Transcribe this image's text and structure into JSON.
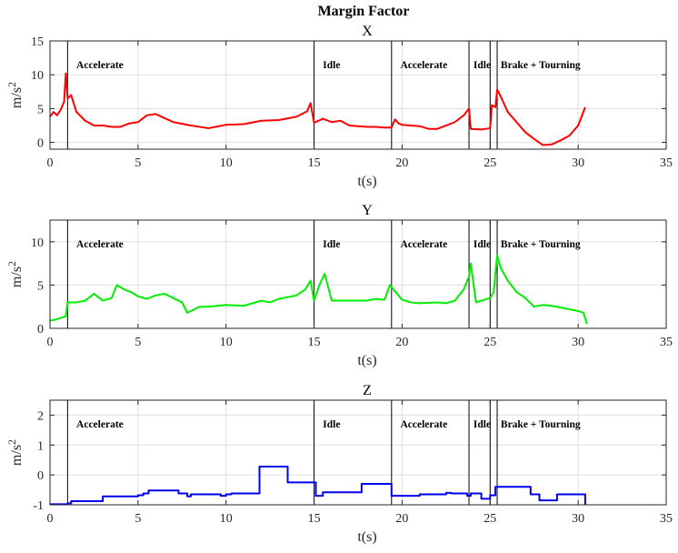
{
  "figure_title": "Margin Factor",
  "chart_data": [
    {
      "type": "line",
      "title": "X",
      "xlabel": "t(s)",
      "ylabel": "m/s^2",
      "xlim": [
        0,
        35
      ],
      "ylim": [
        -1,
        15
      ],
      "xticks": [
        0,
        5,
        10,
        15,
        20,
        25,
        30,
        35
      ],
      "yticks": [
        0,
        5,
        10,
        15
      ],
      "grid": true,
      "events": [
        1,
        15,
        19.4,
        23.8,
        25,
        25.4
      ],
      "annotations": [
        {
          "text": "Accelerate",
          "x": 1.5
        },
        {
          "text": "Idle",
          "x": 15.5
        },
        {
          "text": "Accelerate",
          "x": 19.9
        },
        {
          "text": "Idle",
          "x": 24.05
        },
        {
          "text": "Brake + Tourning",
          "x": 25.6
        }
      ],
      "series": [
        {
          "color": "#ff0000",
          "x": [
            0,
            0.2,
            0.4,
            0.6,
            0.8,
            0.9,
            1.0,
            1.2,
            1.5,
            2.0,
            2.5,
            3.0,
            3.5,
            4.0,
            4.5,
            5.0,
            5.5,
            6.0,
            6.5,
            7.0,
            8.0,
            9.0,
            10.0,
            11.0,
            12.0,
            13.0,
            14.0,
            14.6,
            14.8,
            15.0,
            15.5,
            16.0,
            16.5,
            17.0,
            17.5,
            18.0,
            18.5,
            19.0,
            19.4,
            19.6,
            19.8,
            20.0,
            20.5,
            21.0,
            21.5,
            22.0,
            22.5,
            23.0,
            23.5,
            23.8,
            23.9,
            24.5,
            25.0,
            25.1,
            25.3,
            25.4,
            25.6,
            26.0,
            26.5,
            27.0,
            27.5,
            28.0,
            28.5,
            29.0,
            29.5,
            30.0,
            30.4
          ],
          "values": [
            3.8,
            4.5,
            4.0,
            4.8,
            6.0,
            10.2,
            6.5,
            7.0,
            4.5,
            3.2,
            2.5,
            2.5,
            2.3,
            2.3,
            2.8,
            3.0,
            4.0,
            4.2,
            3.6,
            3.0,
            2.5,
            2.1,
            2.6,
            2.7,
            3.2,
            3.3,
            3.8,
            4.6,
            5.8,
            2.9,
            3.5,
            3.0,
            3.2,
            2.5,
            2.4,
            2.3,
            2.3,
            2.2,
            2.2,
            3.4,
            2.8,
            2.6,
            2.5,
            2.4,
            2.0,
            2.0,
            2.5,
            3.0,
            4.0,
            5.0,
            2.0,
            1.9,
            2.1,
            5.5,
            5.2,
            7.8,
            6.8,
            4.5,
            3.0,
            1.5,
            0.5,
            -0.4,
            -0.3,
            0.3,
            1.0,
            2.5,
            5.2
          ]
        }
      ]
    },
    {
      "type": "line",
      "title": "Y",
      "xlabel": "t(s)",
      "ylabel": "m/s^2",
      "xlim": [
        0,
        35
      ],
      "ylim": [
        0,
        12.5
      ],
      "xticks": [
        0,
        5,
        10,
        15,
        20,
        25,
        30,
        35
      ],
      "yticks": [
        0,
        5,
        10
      ],
      "grid": true,
      "events": [
        1,
        15,
        19.4,
        23.8,
        25,
        25.4
      ],
      "annotations": [
        {
          "text": "Accelerate",
          "x": 1.5
        },
        {
          "text": "Idle",
          "x": 15.5
        },
        {
          "text": "Accelerate",
          "x": 19.9
        },
        {
          "text": "Idle",
          "x": 24.05
        },
        {
          "text": "Brake + Tourning",
          "x": 25.6
        }
      ],
      "series": [
        {
          "color": "#00ee00",
          "x": [
            0,
            0.3,
            0.6,
            0.9,
            1.0,
            1.5,
            2.0,
            2.5,
            3.0,
            3.5,
            3.8,
            4.2,
            4.6,
            5.0,
            5.5,
            6.0,
            6.5,
            7.0,
            7.5,
            7.8,
            8.5,
            9.0,
            10.0,
            11.0,
            12.0,
            12.5,
            13.0,
            14.0,
            14.5,
            14.8,
            15.0,
            15.3,
            15.6,
            16.0,
            17.0,
            18.0,
            18.5,
            19.0,
            19.3,
            19.5,
            19.8,
            20.0,
            20.5,
            21.0,
            22.0,
            22.5,
            23.0,
            23.5,
            23.8,
            23.9,
            24.2,
            24.5,
            25.0,
            25.2,
            25.4,
            25.6,
            26.0,
            26.5,
            27.0,
            27.5,
            28.0,
            28.5,
            29.0,
            29.5,
            30.0,
            30.3,
            30.5
          ],
          "values": [
            0.9,
            1.0,
            1.2,
            1.4,
            3.0,
            3.0,
            3.2,
            4.0,
            3.2,
            3.5,
            5.0,
            4.5,
            4.2,
            3.7,
            3.4,
            3.8,
            4.0,
            3.5,
            3.0,
            1.8,
            2.5,
            2.5,
            2.7,
            2.6,
            3.2,
            3.0,
            3.4,
            3.8,
            4.5,
            5.5,
            3.2,
            5.0,
            6.3,
            3.2,
            3.2,
            3.2,
            3.4,
            3.3,
            5.0,
            4.5,
            3.8,
            3.3,
            3.0,
            2.9,
            3.0,
            2.9,
            3.2,
            4.5,
            6.0,
            7.5,
            3.0,
            3.2,
            3.5,
            4.2,
            8.4,
            7.0,
            5.5,
            4.2,
            3.5,
            2.5,
            2.7,
            2.6,
            2.4,
            2.2,
            2.0,
            1.8,
            0.5
          ]
        }
      ]
    },
    {
      "type": "line",
      "title": "Z",
      "xlabel": "t(s)",
      "ylabel": "m/s^2",
      "xlim": [
        0,
        35
      ],
      "ylim": [
        -1,
        2.5
      ],
      "xticks": [
        0,
        5,
        10,
        15,
        20,
        25,
        30,
        35
      ],
      "yticks": [
        -1,
        0,
        1,
        2
      ],
      "grid": true,
      "events": [
        1,
        15,
        19.4,
        23.8,
        25,
        25.4
      ],
      "annotations": [
        {
          "text": "Accelerate",
          "x": 1.5
        },
        {
          "text": "Idle",
          "x": 15.5
        },
        {
          "text": "Accelerate",
          "x": 19.9
        },
        {
          "text": "Idle",
          "x": 24.05
        },
        {
          "text": "Brake + Tourning",
          "x": 25.6
        }
      ],
      "series": [
        {
          "color": "#0000ee",
          "step": true,
          "x": [
            0,
            0.5,
            1.0,
            1.2,
            2.8,
            3.0,
            4.7,
            5.0,
            5.3,
            5.6,
            7.0,
            7.3,
            7.8,
            8.0,
            9.5,
            9.7,
            10.0,
            10.3,
            11.5,
            11.9,
            13.5,
            15.0,
            15.1,
            15.5,
            17.5,
            17.7,
            19.2,
            19.4,
            19.6,
            21.0,
            21.3,
            22.5,
            22.8,
            23.7,
            23.9,
            24.5,
            25.0,
            25.3,
            25.6,
            27.0,
            27.3,
            27.8,
            28.0,
            28.8,
            30.3,
            30.4
          ],
          "values": [
            -0.98,
            -0.98,
            -0.95,
            -0.88,
            -0.88,
            -0.72,
            -0.72,
            -0.68,
            -0.62,
            -0.52,
            -0.52,
            -0.62,
            -0.72,
            -0.65,
            -0.65,
            -0.7,
            -0.65,
            -0.62,
            -0.62,
            0.28,
            -0.25,
            -0.25,
            -0.7,
            -0.58,
            -0.58,
            -0.3,
            -0.3,
            -0.7,
            -0.7,
            -0.65,
            -0.65,
            -0.6,
            -0.62,
            -0.7,
            -0.62,
            -0.8,
            -0.68,
            -0.4,
            -0.4,
            -0.4,
            -0.65,
            -0.85,
            -0.85,
            -0.65,
            -0.65,
            -1.0
          ]
        }
      ]
    }
  ]
}
